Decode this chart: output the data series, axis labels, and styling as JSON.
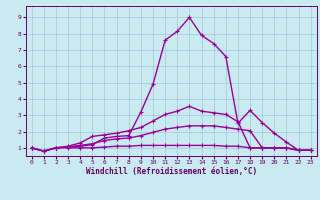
{
  "xlabel": "Windchill (Refroidissement éolien,°C)",
  "bg_color": "#c8eaf0",
  "grid_color": "#a0c8d8",
  "line_color": "#990099",
  "xlim": [
    -0.5,
    23.5
  ],
  "ylim": [
    0.5,
    9.7
  ],
  "xticks": [
    0,
    1,
    2,
    3,
    4,
    5,
    6,
    7,
    8,
    9,
    10,
    11,
    12,
    13,
    14,
    15,
    16,
    17,
    18,
    19,
    20,
    21,
    22,
    23
  ],
  "yticks": [
    1,
    2,
    3,
    4,
    5,
    6,
    7,
    8,
    9
  ],
  "lines": [
    {
      "x": [
        0,
        1,
        2,
        3,
        4,
        5,
        6,
        7,
        8,
        9,
        10,
        11,
        12,
        13,
        14,
        15,
        16,
        17,
        18,
        19,
        20,
        21,
        22,
        23
      ],
      "y": [
        1.0,
        0.8,
        1.0,
        1.05,
        1.1,
        1.2,
        1.6,
        1.7,
        1.75,
        3.2,
        4.9,
        7.6,
        8.15,
        9.0,
        7.9,
        7.4,
        6.6,
        2.5,
        3.3,
        2.55,
        1.9,
        1.35,
        0.85,
        0.85
      ]
    },
    {
      "x": [
        0,
        1,
        2,
        3,
        4,
        5,
        6,
        7,
        8,
        9,
        10,
        11,
        12,
        13,
        14,
        15,
        16,
        17,
        18,
        19,
        20,
        21,
        22,
        23
      ],
      "y": [
        1.0,
        0.8,
        1.0,
        1.1,
        1.3,
        1.7,
        1.8,
        1.9,
        2.05,
        2.25,
        2.65,
        3.05,
        3.25,
        3.55,
        3.25,
        3.15,
        3.05,
        2.6,
        1.0,
        1.0,
        1.0,
        1.0,
        0.85,
        0.85
      ]
    },
    {
      "x": [
        0,
        1,
        2,
        3,
        4,
        5,
        6,
        7,
        8,
        9,
        10,
        11,
        12,
        13,
        14,
        15,
        16,
        17,
        18,
        19,
        20,
        21,
        22,
        23
      ],
      "y": [
        1.0,
        0.8,
        1.0,
        1.05,
        1.15,
        1.25,
        1.45,
        1.55,
        1.6,
        1.75,
        1.95,
        2.15,
        2.25,
        2.35,
        2.35,
        2.35,
        2.25,
        2.15,
        2.05,
        1.0,
        1.0,
        1.0,
        0.85,
        0.85
      ]
    },
    {
      "x": [
        0,
        1,
        2,
        3,
        4,
        5,
        6,
        7,
        8,
        9,
        10,
        11,
        12,
        13,
        14,
        15,
        16,
        17,
        18,
        19,
        20,
        21,
        22,
        23
      ],
      "y": [
        1.0,
        0.8,
        1.0,
        1.0,
        1.0,
        1.0,
        1.05,
        1.1,
        1.1,
        1.15,
        1.15,
        1.15,
        1.15,
        1.15,
        1.15,
        1.15,
        1.1,
        1.1,
        1.0,
        1.0,
        1.0,
        1.0,
        0.85,
        0.85
      ]
    }
  ],
  "marker": "+",
  "marker_size": 3.5,
  "line_width": 1.0,
  "axis_fontsize": 5.5,
  "tick_fontsize": 4.5,
  "label_color": "#660066"
}
